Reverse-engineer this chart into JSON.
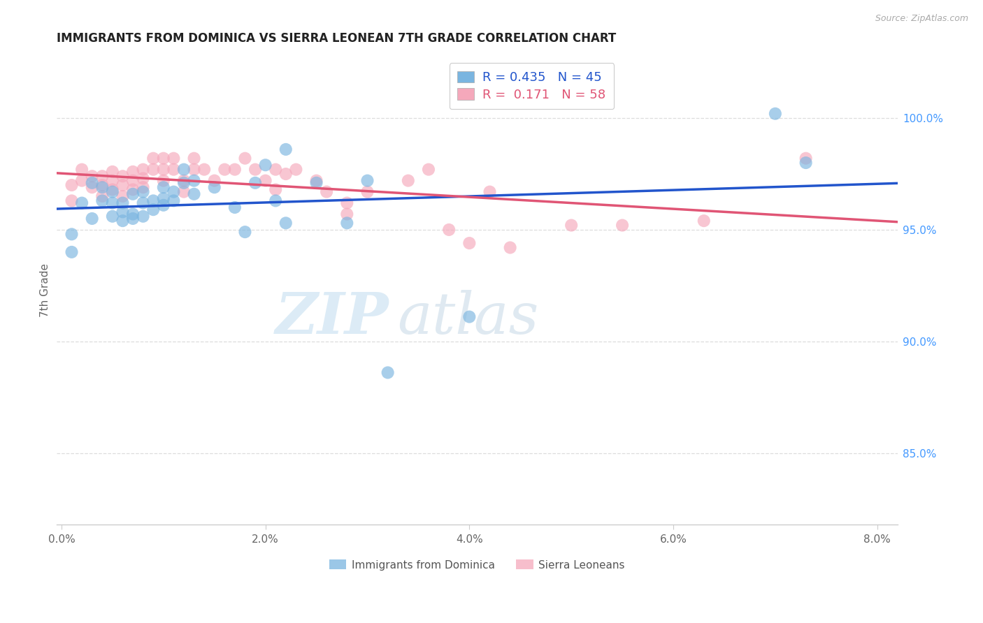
{
  "title": "IMMIGRANTS FROM DOMINICA VS SIERRA LEONEAN 7TH GRADE CORRELATION CHART",
  "source": "Source: ZipAtlas.com",
  "xlabel_ticks": [
    "0.0%",
    "2.0%",
    "4.0%",
    "6.0%",
    "8.0%"
  ],
  "xlabel_tick_vals": [
    0.0,
    0.02,
    0.04,
    0.06,
    0.08
  ],
  "ylabel": "7th Grade",
  "ylabel_ticks": [
    "85.0%",
    "90.0%",
    "95.0%",
    "100.0%"
  ],
  "ylabel_tick_vals": [
    0.85,
    0.9,
    0.95,
    1.0
  ],
  "xlim": [
    -0.0005,
    0.082
  ],
  "ylim": [
    0.818,
    1.028
  ],
  "blue_R": 0.435,
  "blue_N": 45,
  "pink_R": 0.171,
  "pink_N": 58,
  "blue_color": "#7ab5e0",
  "pink_color": "#f5a8bb",
  "blue_line_color": "#2255cc",
  "pink_line_color": "#e05575",
  "legend_label_blue": "Immigrants from Dominica",
  "legend_label_pink": "Sierra Leoneans",
  "blue_x": [
    0.001,
    0.001,
    0.002,
    0.003,
    0.003,
    0.004,
    0.004,
    0.005,
    0.005,
    0.005,
    0.006,
    0.006,
    0.006,
    0.007,
    0.007,
    0.007,
    0.008,
    0.008,
    0.008,
    0.009,
    0.009,
    0.01,
    0.01,
    0.01,
    0.011,
    0.011,
    0.012,
    0.012,
    0.013,
    0.013,
    0.015,
    0.017,
    0.018,
    0.019,
    0.021,
    0.022,
    0.025,
    0.028,
    0.03,
    0.032,
    0.02,
    0.04,
    0.022,
    0.07,
    0.073
  ],
  "blue_y": [
    0.94,
    0.948,
    0.962,
    0.955,
    0.971,
    0.963,
    0.969,
    0.956,
    0.962,
    0.967,
    0.954,
    0.958,
    0.962,
    0.955,
    0.957,
    0.966,
    0.956,
    0.962,
    0.967,
    0.959,
    0.963,
    0.961,
    0.964,
    0.969,
    0.963,
    0.967,
    0.971,
    0.977,
    0.972,
    0.966,
    0.969,
    0.96,
    0.949,
    0.971,
    0.963,
    0.953,
    0.971,
    0.953,
    0.972,
    0.886,
    0.979,
    0.911,
    0.986,
    1.002,
    0.98
  ],
  "pink_x": [
    0.001,
    0.001,
    0.002,
    0.002,
    0.003,
    0.003,
    0.004,
    0.004,
    0.004,
    0.005,
    0.005,
    0.005,
    0.006,
    0.006,
    0.006,
    0.007,
    0.007,
    0.007,
    0.008,
    0.008,
    0.008,
    0.009,
    0.009,
    0.01,
    0.01,
    0.01,
    0.011,
    0.011,
    0.012,
    0.012,
    0.013,
    0.013,
    0.014,
    0.015,
    0.016,
    0.017,
    0.018,
    0.019,
    0.02,
    0.021,
    0.022,
    0.023,
    0.025,
    0.026,
    0.028,
    0.03,
    0.034,
    0.036,
    0.038,
    0.04,
    0.042,
    0.044,
    0.05,
    0.055,
    0.021,
    0.028,
    0.063,
    0.073
  ],
  "pink_y": [
    0.963,
    0.97,
    0.972,
    0.977,
    0.969,
    0.974,
    0.965,
    0.97,
    0.974,
    0.968,
    0.972,
    0.976,
    0.965,
    0.97,
    0.974,
    0.968,
    0.972,
    0.976,
    0.969,
    0.973,
    0.977,
    0.977,
    0.982,
    0.977,
    0.972,
    0.982,
    0.977,
    0.982,
    0.967,
    0.972,
    0.977,
    0.982,
    0.977,
    0.972,
    0.977,
    0.977,
    0.982,
    0.977,
    0.972,
    0.977,
    0.975,
    0.977,
    0.972,
    0.967,
    0.962,
    0.967,
    0.972,
    0.977,
    0.95,
    0.944,
    0.967,
    0.942,
    0.952,
    0.952,
    0.968,
    0.957,
    0.954,
    0.982
  ]
}
